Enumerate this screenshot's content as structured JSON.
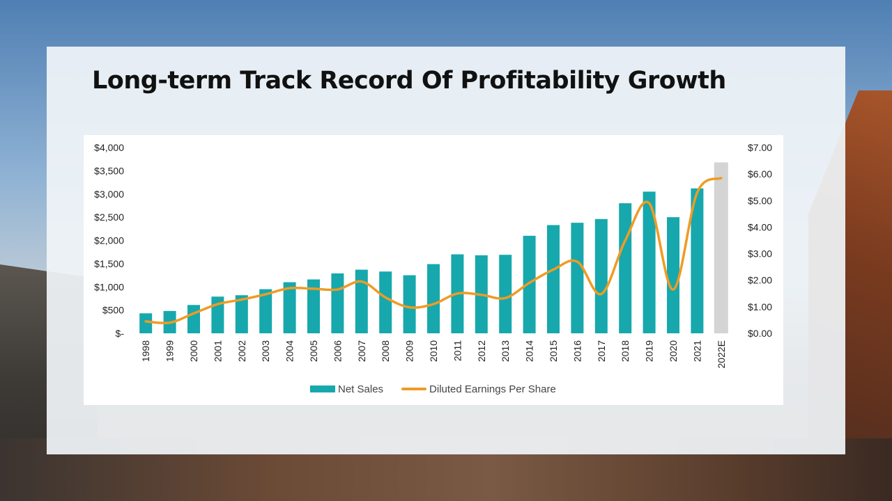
{
  "slide": {
    "title": "Long-term Track Record Of Profitability  Growth"
  },
  "colors": {
    "net_sales": "#16a8ad",
    "estimate": "#d4d4d4",
    "eps_line": "#ef9b24"
  },
  "chart_data": {
    "type": "bar",
    "title": "",
    "categories": [
      "1998",
      "1999",
      "2000",
      "2001",
      "2002",
      "2003",
      "2004",
      "2005",
      "2006",
      "2007",
      "2008",
      "2009",
      "2010",
      "2011",
      "2012",
      "2013",
      "2014",
      "2015",
      "2016",
      "2017",
      "2018",
      "2019",
      "2020",
      "2021",
      "2022E"
    ],
    "series": [
      {
        "name": "Net Sales",
        "type": "bar",
        "axis": "left",
        "values": [
          430,
          480,
          610,
          790,
          820,
          950,
          1100,
          1160,
          1290,
          1370,
          1330,
          1250,
          1490,
          1700,
          1680,
          1690,
          2100,
          2330,
          2380,
          2460,
          2800,
          3050,
          2500,
          3120,
          3680
        ],
        "estimate_categories": [
          "2022E"
        ]
      },
      {
        "name": "Diluted Earnings Per Share",
        "type": "line",
        "axis": "right",
        "values": [
          0.45,
          0.4,
          0.75,
          1.1,
          1.27,
          1.47,
          1.7,
          1.68,
          1.65,
          1.95,
          1.35,
          0.98,
          1.1,
          1.5,
          1.45,
          1.33,
          1.9,
          2.4,
          2.7,
          1.48,
          3.5,
          4.9,
          1.65,
          5.3,
          5.85
        ]
      }
    ],
    "y_left": {
      "ylim": [
        0,
        4000
      ],
      "ticks": [
        0,
        500,
        1000,
        1500,
        2000,
        2500,
        3000,
        3500,
        4000
      ],
      "tick_labels": [
        "$-",
        "$500",
        "$1,000",
        "$1,500",
        "$2,000",
        "$2,500",
        "$3,000",
        "$3,500",
        "$4,000"
      ]
    },
    "y_right": {
      "ylim": [
        0,
        7
      ],
      "ticks": [
        0,
        1,
        2,
        3,
        4,
        5,
        6,
        7
      ],
      "tick_labels": [
        "$0.00",
        "$1.00",
        "$2.00",
        "$3.00",
        "$4.00",
        "$5.00",
        "$6.00",
        "$7.00"
      ]
    },
    "xlabel": "",
    "ylabel": "",
    "grid": false,
    "legend": {
      "placement": "bottom",
      "items": [
        "Net Sales",
        "Diluted Earnings Per Share"
      ]
    }
  }
}
